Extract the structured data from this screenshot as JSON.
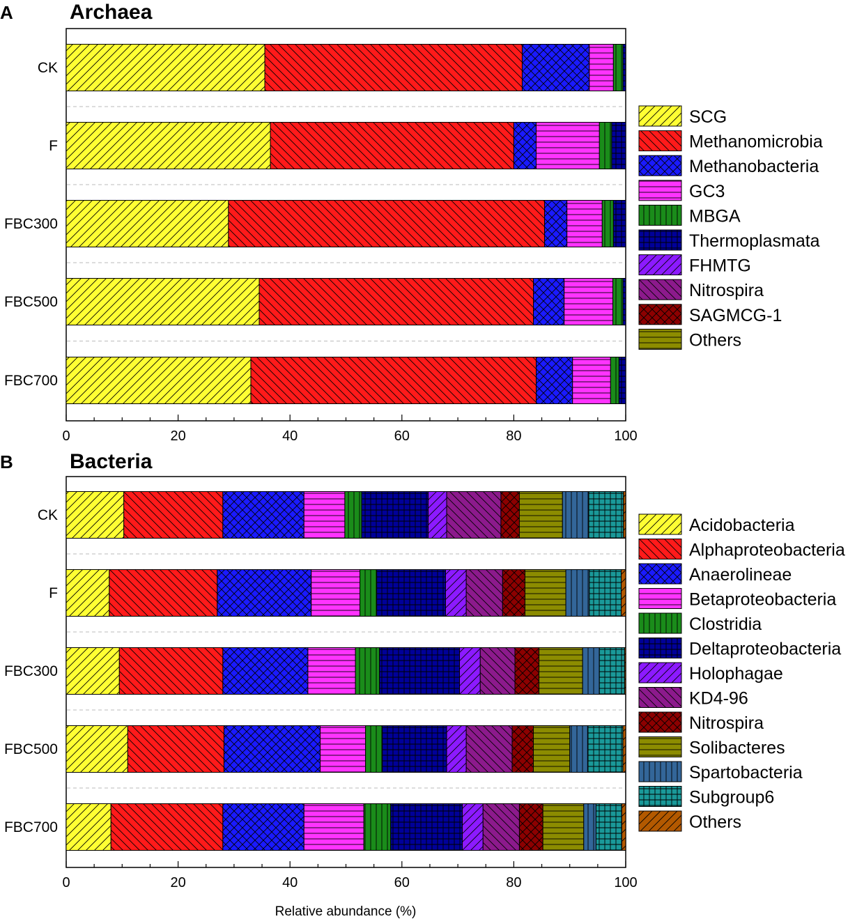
{
  "colors": {
    "SCG": "#ffff33",
    "Methanomicrobia": "#ff1a1a",
    "Methanobacteria": "#1a1aff",
    "GC3": "#ff33ff",
    "MBGA": "#1a8c1a",
    "Thermoplasmata": "#000099",
    "FHMTG": "#8c1aff",
    "Nitrospira_arch": "#8c1a8c",
    "SAGMCG-1": "#8c0000",
    "Others_arch": "#8c8c00",
    "Acidobacteria": "#ffff33",
    "Alphaproteobacteria": "#ff1a1a",
    "Anaerolineae": "#1a1aff",
    "Betaproteobacteria": "#ff33ff",
    "Clostridia": "#1a8c1a",
    "Deltaproteobacteria": "#000099",
    "Holophagae": "#8c1aff",
    "KD4-96": "#8c1a8c",
    "Nitrospira_bact": "#8c0000",
    "Solibacteres": "#8c8c00",
    "Spartobacteria": "#336699",
    "Subgroup6": "#1a9999",
    "Others_bact": "#b35900"
  },
  "chart_data": [
    {
      "type": "bar",
      "orientation": "horizontal-stacked",
      "panel": "A",
      "title": "Archaea",
      "xlabel": "",
      "ylabel": "",
      "xlim": [
        0,
        100
      ],
      "xticks": [
        0,
        20,
        40,
        60,
        80,
        100
      ],
      "categories": [
        "CK",
        "F",
        "FBC300",
        "FBC500",
        "FBC700"
      ],
      "series": [
        {
          "name": "SCG",
          "color_key": "SCG",
          "pattern": "diag-fwd",
          "values": [
            35.5,
            36.5,
            29.0,
            34.5,
            33.0
          ]
        },
        {
          "name": "Methanomicrobia",
          "color_key": "Methanomicrobia",
          "pattern": "diag-back",
          "values": [
            46.0,
            43.5,
            56.5,
            49.0,
            51.0
          ]
        },
        {
          "name": "Methanobacteria",
          "color_key": "Methanobacteria",
          "pattern": "cross-diag",
          "values": [
            12.0,
            4.0,
            4.0,
            5.5,
            6.5
          ]
        },
        {
          "name": "GC3",
          "color_key": "GC3",
          "pattern": "horiz",
          "values": [
            4.3,
            11.3,
            6.3,
            8.7,
            6.8
          ]
        },
        {
          "name": "MBGA",
          "color_key": "MBGA",
          "pattern": "vert",
          "values": [
            1.7,
            2.2,
            2.0,
            1.8,
            1.5
          ]
        },
        {
          "name": "Thermoplasmata",
          "color_key": "Thermoplasmata",
          "pattern": "grid",
          "values": [
            0.5,
            2.5,
            2.2,
            0.5,
            1.2
          ]
        },
        {
          "name": "FHMTG",
          "color_key": "FHMTG",
          "pattern": "diag-fwd",
          "values": [
            0,
            0,
            0,
            0,
            0
          ]
        },
        {
          "name": "Nitrospira",
          "color_key": "Nitrospira_arch",
          "pattern": "diag-back",
          "values": [
            0,
            0,
            0,
            0,
            0
          ]
        },
        {
          "name": "SAGMCG-1",
          "color_key": "SAGMCG-1",
          "pattern": "cross-diag",
          "values": [
            0,
            0,
            0,
            0,
            0
          ]
        },
        {
          "name": "Others",
          "color_key": "Others_arch",
          "pattern": "horiz",
          "values": [
            0,
            0,
            0,
            0,
            0
          ]
        }
      ]
    },
    {
      "type": "bar",
      "orientation": "horizontal-stacked",
      "panel": "B",
      "title": "Bacteria",
      "xlabel": "Relative abundance (%)",
      "ylabel": "",
      "xlim": [
        0,
        100
      ],
      "xticks": [
        0,
        20,
        40,
        60,
        80,
        100
      ],
      "categories": [
        "CK",
        "F",
        "FBC300",
        "FBC500",
        "FBC700"
      ],
      "series": [
        {
          "name": "Acidobacteria",
          "color_key": "Acidobacteria",
          "pattern": "diag-fwd",
          "values": [
            10.3,
            7.7,
            9.5,
            11.0,
            8.0
          ]
        },
        {
          "name": "Alphaproteobacteria",
          "color_key": "Alphaproteobacteria",
          "pattern": "diag-back",
          "values": [
            17.7,
            19.3,
            18.5,
            17.2,
            20.0
          ]
        },
        {
          "name": "Anaerolineae",
          "color_key": "Anaerolineae",
          "pattern": "cross-diag",
          "values": [
            14.5,
            16.8,
            15.2,
            17.2,
            14.5
          ]
        },
        {
          "name": "Betaproteobacteria",
          "color_key": "Betaproteobacteria",
          "pattern": "horiz",
          "values": [
            7.3,
            8.7,
            8.5,
            8.1,
            10.7
          ]
        },
        {
          "name": "Clostridia",
          "color_key": "Clostridia",
          "pattern": "vert",
          "values": [
            3.0,
            3.0,
            4.3,
            3.0,
            4.8
          ]
        },
        {
          "name": "Deltaproteobacteria",
          "color_key": "Deltaproteobacteria",
          "pattern": "grid",
          "values": [
            11.9,
            12.3,
            14.3,
            11.5,
            12.8
          ]
        },
        {
          "name": "Holophagae",
          "color_key": "Holophagae",
          "pattern": "diag-fwd",
          "values": [
            3.3,
            3.7,
            3.7,
            3.5,
            3.7
          ]
        },
        {
          "name": "KD4-96",
          "color_key": "KD4-96",
          "pattern": "diag-back",
          "values": [
            9.7,
            6.5,
            6.2,
            8.2,
            6.5
          ]
        },
        {
          "name": "Nitrospira",
          "color_key": "Nitrospira_bact",
          "pattern": "cross-diag",
          "values": [
            3.3,
            4.0,
            4.3,
            3.8,
            4.2
          ]
        },
        {
          "name": "Solibacteres",
          "color_key": "Solibacteres",
          "pattern": "horiz",
          "values": [
            7.7,
            7.3,
            7.8,
            6.5,
            7.3
          ]
        },
        {
          "name": "Spartobacteria",
          "color_key": "Spartobacteria",
          "pattern": "vert",
          "values": [
            4.7,
            4.2,
            3.0,
            3.2,
            2.2
          ]
        },
        {
          "name": "Subgroup6",
          "color_key": "Subgroup6",
          "pattern": "grid",
          "values": [
            6.2,
            5.7,
            4.5,
            6.3,
            4.6
          ]
        },
        {
          "name": "Others",
          "color_key": "Others_bact",
          "pattern": "diag-fwd",
          "values": [
            0.4,
            0.8,
            0.2,
            0.5,
            0.7
          ]
        }
      ]
    }
  ]
}
